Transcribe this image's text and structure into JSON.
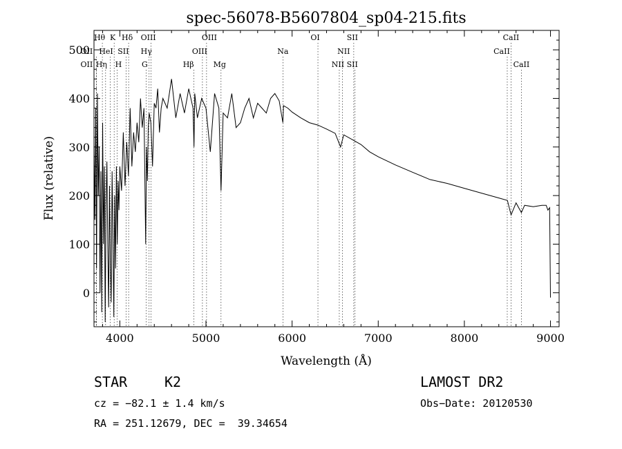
{
  "chart_data": {
    "type": "line",
    "title": "spec-56078-B5607804_sp04-215.fits",
    "xlabel": "Wavelength (Å)",
    "ylabel": "Flux (relative)",
    "xlim": [
      3700,
      9100
    ],
    "ylim": [
      -70,
      540
    ],
    "x_ticks": [
      4000,
      5000,
      6000,
      7000,
      8000,
      9000
    ],
    "y_ticks": [
      0,
      100,
      200,
      300,
      400,
      500
    ],
    "grid": false,
    "series": [
      {
        "name": "flux",
        "x": [
          3700,
          3710,
          3720,
          3730,
          3740,
          3750,
          3760,
          3770,
          3780,
          3790,
          3800,
          3810,
          3820,
          3830,
          3840,
          3850,
          3860,
          3870,
          3880,
          3890,
          3900,
          3910,
          3920,
          3930,
          3940,
          3950,
          3960,
          3970,
          3980,
          3990,
          4000,
          4020,
          4040,
          4060,
          4080,
          4100,
          4120,
          4140,
          4160,
          4180,
          4200,
          4220,
          4240,
          4260,
          4280,
          4300,
          4310,
          4320,
          4330,
          4340,
          4360,
          4380,
          4400,
          4420,
          4440,
          4460,
          4480,
          4500,
          4550,
          4600,
          4650,
          4700,
          4750,
          4800,
          4850,
          4861,
          4870,
          4900,
          4950,
          5000,
          5050,
          5100,
          5150,
          5175,
          5200,
          5250,
          5300,
          5350,
          5400,
          5450,
          5500,
          5550,
          5600,
          5650,
          5700,
          5750,
          5800,
          5850,
          5893,
          5900,
          5950,
          6000,
          6100,
          6200,
          6300,
          6400,
          6500,
          6563,
          6600,
          6700,
          6800,
          6900,
          7000,
          7200,
          7400,
          7600,
          7800,
          8000,
          8200,
          8400,
          8500,
          8542,
          8600,
          8662,
          8700,
          8800,
          8900,
          8950,
          8970,
          8990,
          9000
        ],
        "y": [
          310,
          150,
          380,
          50,
          410,
          200,
          300,
          0,
          250,
          -40,
          350,
          100,
          260,
          -60,
          180,
          270,
          100,
          -30,
          220,
          60,
          -20,
          250,
          120,
          -50,
          200,
          50,
          260,
          100,
          230,
          170,
          260,
          210,
          330,
          220,
          310,
          240,
          380,
          260,
          330,
          290,
          350,
          310,
          400,
          340,
          380,
          100,
          300,
          230,
          340,
          370,
          350,
          260,
          390,
          380,
          420,
          330,
          380,
          400,
          380,
          440,
          360,
          410,
          370,
          420,
          380,
          300,
          410,
          360,
          400,
          380,
          290,
          410,
          380,
          210,
          370,
          360,
          410,
          340,
          350,
          380,
          400,
          360,
          390,
          380,
          370,
          400,
          410,
          395,
          350,
          385,
          380,
          372,
          360,
          350,
          345,
          337,
          328,
          300,
          325,
          315,
          305,
          290,
          280,
          263,
          248,
          233,
          225,
          215,
          205,
          195,
          190,
          160,
          185,
          165,
          180,
          177,
          180,
          180,
          170,
          175,
          -10
        ]
      }
    ],
    "lines": [
      {
        "label": "Hθ",
        "x": 3797
      },
      {
        "label": "K",
        "x": 3934
      },
      {
        "label": "Hδ",
        "x": 4102
      },
      {
        "label": "OII",
        "x": 3727
      },
      {
        "label": "HeI",
        "x": 3889
      },
      {
        "label": "SII",
        "x": 4072
      },
      {
        "label": "OII",
        "x": 3727
      },
      {
        "label": "Hη",
        "x": 3835
      },
      {
        "label": "H",
        "x": 3968
      },
      {
        "label": "OIII",
        "x": 4363
      },
      {
        "label": "Hγ",
        "x": 4340
      },
      {
        "label": "G",
        "x": 4305
      },
      {
        "label": "OIII",
        "x": 5007
      },
      {
        "label": "OIII",
        "x": 4959
      },
      {
        "label": "Hβ",
        "x": 4861
      },
      {
        "label": "Mg",
        "x": 5175
      },
      {
        "label": "Na",
        "x": 5893
      },
      {
        "label": "OI",
        "x": 6300
      },
      {
        "label": "NII",
        "x": 6583
      },
      {
        "label": "NII",
        "x": 6548
      },
      {
        "label": "SII",
        "x": 6716
      },
      {
        "label": "SII",
        "x": 6731
      },
      {
        "label": "CaII",
        "x": 8542
      },
      {
        "label": "CaII",
        "x": 8498
      },
      {
        "label": "CaII",
        "x": 8662
      }
    ]
  },
  "info": {
    "object_class": "STAR",
    "subclass": "K2",
    "survey": "LAMOST DR2",
    "cz": "cz = −82.1 ± 1.4 km/s",
    "obs_date": "Obs−Date: 20120530",
    "coords": "RA = 251.12679, DEC =  39.34654"
  }
}
